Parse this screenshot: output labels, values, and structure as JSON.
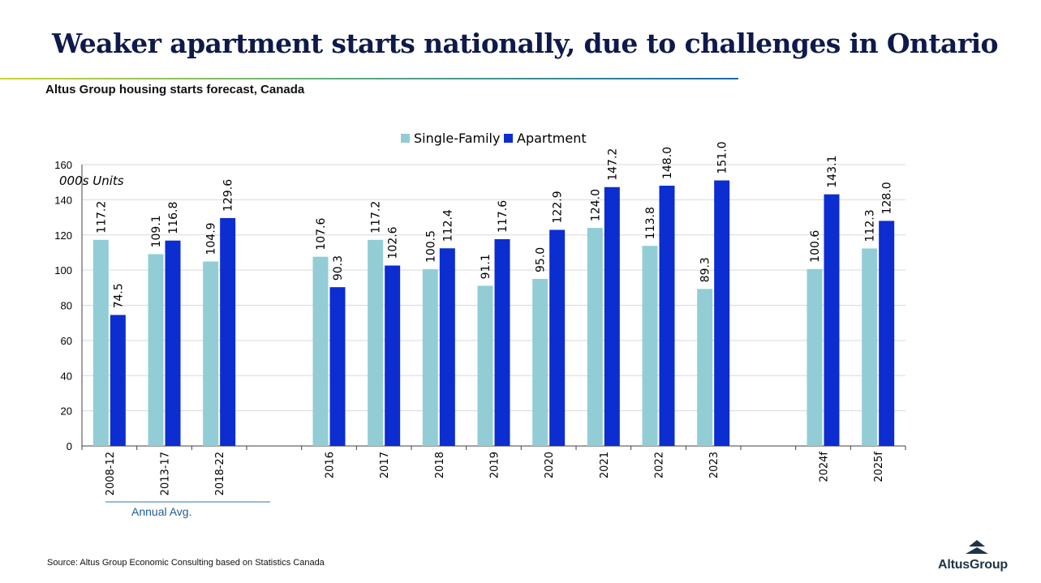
{
  "slide": {
    "title": "Weaker apartment starts nationally, due to challenges in Ontario",
    "subtitle": "Altus Group housing starts forecast, Canada",
    "source": "Source:  Altus Group Economic Consulting based on Statistics Canada",
    "logo_text": "AltusGroup"
  },
  "chart_data": {
    "type": "bar",
    "title": "Altus Group housing starts forecast, Canada",
    "ylabel": "000s Units",
    "xlabel": "",
    "ylim": [
      0,
      160
    ],
    "yticks": [
      0,
      20,
      40,
      60,
      80,
      100,
      120,
      140,
      160
    ],
    "grid": true,
    "legend": "top-center",
    "categories": [
      "2008-12",
      "2013-17",
      "2018-22",
      "",
      "2016",
      "2017",
      "2018",
      "2019",
      "2020",
      "2021",
      "2022",
      "2023",
      "",
      "2024f",
      "2025f"
    ],
    "series": [
      {
        "name": "Single-Family",
        "color": "#92cdd6",
        "values": [
          117.2,
          109.1,
          104.9,
          null,
          107.6,
          117.2,
          100.5,
          91.1,
          95.0,
          124.0,
          113.8,
          89.3,
          null,
          100.6,
          112.3
        ]
      },
      {
        "name": "Apartment",
        "color": "#0c2dd0",
        "values": [
          74.5,
          116.8,
          129.6,
          null,
          90.3,
          102.6,
          112.4,
          117.6,
          122.9,
          147.2,
          148.0,
          151.0,
          null,
          143.1,
          128.0
        ]
      }
    ],
    "group_annotation": {
      "label": "Annual Avg.",
      "first_category": 0,
      "last_category": 3
    }
  }
}
